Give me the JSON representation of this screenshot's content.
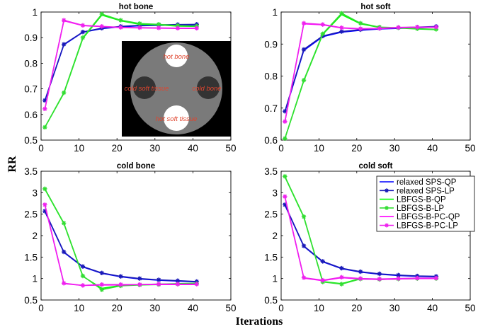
{
  "figure": {
    "ylabel": "RR",
    "xlabel": "Iterations"
  },
  "legend": {
    "entries": [
      {
        "label": "relaxed SPS-QP",
        "color": "#0000ff",
        "marker": "none"
      },
      {
        "label": "relaxed SPS-LP",
        "color": "#1a1ab8",
        "marker": "star"
      },
      {
        "label": "LBFGS-B-QP",
        "color": "#00ff00",
        "marker": "none"
      },
      {
        "label": "LBFGS-B-LP",
        "color": "#33dd33",
        "marker": "star"
      },
      {
        "label": "LBFGS-B-PC-QP",
        "color": "#ff00ff",
        "marker": "none"
      },
      {
        "label": "LBFGS-B-PC-LP",
        "color": "#ee22ee",
        "marker": "star"
      }
    ]
  },
  "inset": {
    "labels": [
      "hot bone",
      "cold soft tissue",
      "cold bone",
      "hot soft tissue"
    ]
  },
  "chart_data": [
    {
      "type": "line",
      "title": "hot bone",
      "xlim": [
        0,
        50
      ],
      "ylim": [
        0.5,
        1
      ],
      "xticks": [
        0,
        10,
        20,
        30,
        40,
        50
      ],
      "yticks": [
        0.5,
        0.6,
        0.7,
        0.8,
        0.9,
        1
      ],
      "x": [
        1,
        6,
        11,
        16,
        21,
        26,
        31,
        36,
        41
      ],
      "series": [
        {
          "name": "relaxed SPS-QP",
          "values": [
            0.655,
            0.872,
            0.921,
            0.935,
            0.942,
            0.946,
            0.948,
            0.949,
            0.95
          ]
        },
        {
          "name": "relaxed SPS-LP",
          "values": [
            0.655,
            0.874,
            0.922,
            0.937,
            0.944,
            0.948,
            0.95,
            0.951,
            0.952
          ]
        },
        {
          "name": "LBFGS-B-QP",
          "values": [
            0.55,
            0.683,
            0.897,
            0.988,
            0.966,
            0.952,
            0.95,
            0.945,
            0.944
          ]
        },
        {
          "name": "LBFGS-B-LP",
          "values": [
            0.55,
            0.685,
            0.9,
            0.992,
            0.968,
            0.955,
            0.952,
            0.947,
            0.945
          ]
        },
        {
          "name": "LBFGS-B-PC-QP",
          "values": [
            0.622,
            0.966,
            0.947,
            0.943,
            0.939,
            0.938,
            0.937,
            0.936,
            0.936
          ]
        },
        {
          "name": "LBFGS-B-PC-LP",
          "values": [
            0.622,
            0.968,
            0.948,
            0.944,
            0.94,
            0.939,
            0.938,
            0.937,
            0.937
          ]
        }
      ]
    },
    {
      "type": "line",
      "title": "hot soft",
      "xlim": [
        0,
        50
      ],
      "ylim": [
        0.6,
        1
      ],
      "xticks": [
        0,
        10,
        20,
        30,
        40,
        50
      ],
      "yticks": [
        0.6,
        0.7,
        0.8,
        0.9,
        1
      ],
      "x": [
        1,
        6,
        11,
        16,
        21,
        26,
        31,
        36,
        41
      ],
      "series": [
        {
          "name": "relaxed SPS-QP",
          "values": [
            0.688,
            0.88,
            0.923,
            0.937,
            0.943,
            0.947,
            0.949,
            0.951,
            0.953
          ]
        },
        {
          "name": "relaxed SPS-LP",
          "values": [
            0.69,
            0.883,
            0.925,
            0.939,
            0.945,
            0.949,
            0.951,
            0.953,
            0.955
          ]
        },
        {
          "name": "LBFGS-B-QP",
          "values": [
            0.605,
            0.785,
            0.93,
            0.992,
            0.963,
            0.952,
            0.95,
            0.947,
            0.945
          ]
        },
        {
          "name": "LBFGS-B-LP",
          "values": [
            0.605,
            0.787,
            0.932,
            0.996,
            0.965,
            0.953,
            0.951,
            0.948,
            0.946
          ]
        },
        {
          "name": "LBFGS-B-PC-QP",
          "values": [
            0.657,
            0.963,
            0.96,
            0.95,
            0.947,
            0.948,
            0.951,
            0.952,
            0.952
          ]
        },
        {
          "name": "LBFGS-B-PC-LP",
          "values": [
            0.658,
            0.965,
            0.961,
            0.951,
            0.948,
            0.949,
            0.952,
            0.953,
            0.953
          ]
        }
      ]
    },
    {
      "type": "line",
      "title": "cold bone",
      "xlim": [
        0,
        50
      ],
      "ylim": [
        0.5,
        3.5
      ],
      "xticks": [
        0,
        10,
        20,
        30,
        40,
        50
      ],
      "yticks": [
        0.5,
        1,
        1.5,
        2,
        2.5,
        3,
        3.5
      ],
      "x": [
        1,
        6,
        11,
        16,
        21,
        26,
        31,
        36,
        41
      ],
      "series": [
        {
          "name": "relaxed SPS-QP",
          "values": [
            2.56,
            1.61,
            1.27,
            1.12,
            1.04,
            0.99,
            0.96,
            0.94,
            0.92
          ]
        },
        {
          "name": "relaxed SPS-LP",
          "values": [
            2.57,
            1.62,
            1.28,
            1.13,
            1.05,
            1.0,
            0.97,
            0.95,
            0.93
          ]
        },
        {
          "name": "LBFGS-B-QP",
          "values": [
            3.08,
            2.28,
            1.05,
            0.77,
            0.84,
            0.86,
            0.87,
            0.88,
            0.89
          ]
        },
        {
          "name": "LBFGS-B-LP",
          "values": [
            3.09,
            2.29,
            1.06,
            0.74,
            0.83,
            0.85,
            0.86,
            0.87,
            0.88
          ]
        },
        {
          "name": "LBFGS-B-PC-QP",
          "values": [
            2.71,
            0.88,
            0.84,
            0.85,
            0.85,
            0.86,
            0.86,
            0.86,
            0.86
          ]
        },
        {
          "name": "LBFGS-B-PC-LP",
          "values": [
            2.72,
            0.89,
            0.84,
            0.86,
            0.86,
            0.86,
            0.87,
            0.87,
            0.87
          ]
        }
      ]
    },
    {
      "type": "line",
      "title": "cold soft",
      "xlim": [
        0,
        50
      ],
      "ylim": [
        0.5,
        3.5
      ],
      "xticks": [
        0,
        10,
        20,
        30,
        40,
        50
      ],
      "yticks": [
        0.5,
        1,
        1.5,
        2,
        2.5,
        3,
        3.5
      ],
      "x": [
        1,
        6,
        11,
        16,
        21,
        26,
        31,
        36,
        41
      ],
      "series": [
        {
          "name": "relaxed SPS-QP",
          "values": [
            2.71,
            1.75,
            1.39,
            1.23,
            1.15,
            1.1,
            1.07,
            1.05,
            1.04
          ]
        },
        {
          "name": "relaxed SPS-LP",
          "values": [
            2.72,
            1.76,
            1.4,
            1.24,
            1.16,
            1.11,
            1.08,
            1.06,
            1.05
          ]
        },
        {
          "name": "LBFGS-B-QP",
          "values": [
            3.37,
            2.43,
            0.93,
            0.88,
            1.0,
            0.98,
            0.99,
            1.0,
            1.0
          ]
        },
        {
          "name": "LBFGS-B-LP",
          "values": [
            3.38,
            2.44,
            0.92,
            0.87,
            0.99,
            0.98,
            0.99,
            1.0,
            1.0
          ]
        },
        {
          "name": "LBFGS-B-PC-QP",
          "values": [
            2.9,
            1.01,
            0.95,
            1.02,
            0.99,
            0.98,
            0.99,
            1.0,
            1.0
          ]
        },
        {
          "name": "LBFGS-B-PC-LP",
          "values": [
            2.91,
            1.02,
            0.96,
            1.03,
            1.0,
            0.99,
            1.0,
            1.01,
            1.01
          ]
        }
      ]
    }
  ]
}
